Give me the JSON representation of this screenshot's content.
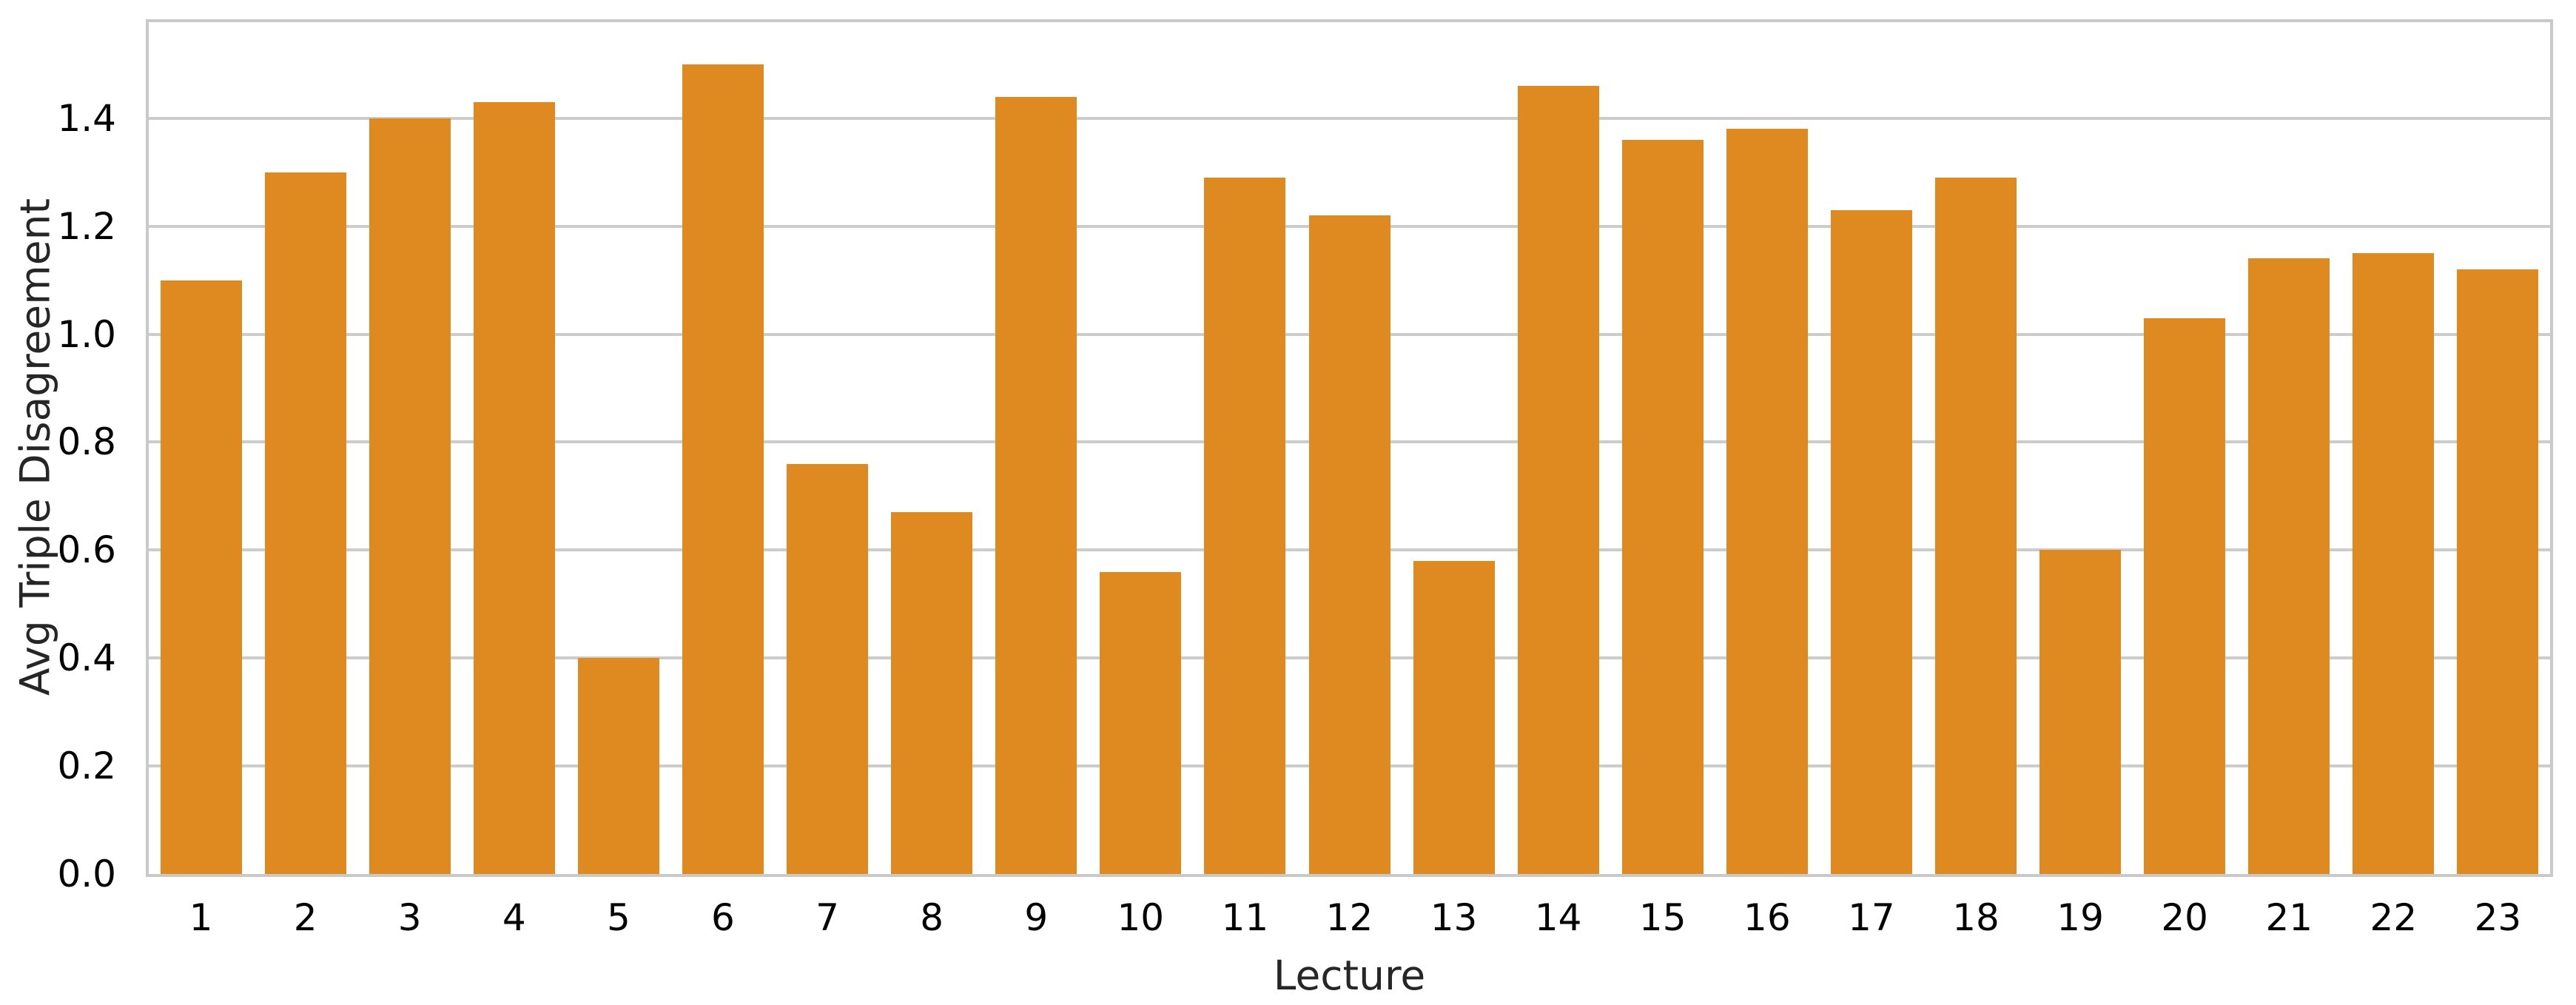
{
  "figure": {
    "background": "#ffffff"
  },
  "chart_data": {
    "type": "bar",
    "title": "",
    "xlabel": "Lecture",
    "ylabel": "Avg Triple Disagreement",
    "categories": [
      "1",
      "2",
      "3",
      "4",
      "5",
      "6",
      "7",
      "8",
      "9",
      "10",
      "11",
      "12",
      "13",
      "14",
      "15",
      "16",
      "17",
      "18",
      "19",
      "20",
      "21",
      "22",
      "23"
    ],
    "values": [
      1.1,
      1.3,
      1.4,
      1.43,
      0.4,
      1.5,
      0.76,
      0.67,
      1.44,
      0.56,
      1.29,
      1.22,
      0.58,
      1.46,
      1.36,
      1.38,
      1.23,
      1.29,
      0.6,
      1.03,
      1.14,
      1.15,
      1.12
    ],
    "ylim": [
      0,
      1.578
    ],
    "yticks": [
      0.0,
      0.2,
      0.4,
      0.6,
      0.8,
      1.0,
      1.2,
      1.4
    ],
    "ytick_labels": [
      "0.0",
      "0.2",
      "0.4",
      "0.6",
      "0.8",
      "1.0",
      "1.2",
      "1.4"
    ],
    "grid": "horizontal",
    "legend": "none",
    "bar_width_fraction": 0.78,
    "colors": {
      "bar": "#de8a20",
      "grid": "#cccccc",
      "spine": "#c9c9c9",
      "text": "#262626"
    }
  }
}
